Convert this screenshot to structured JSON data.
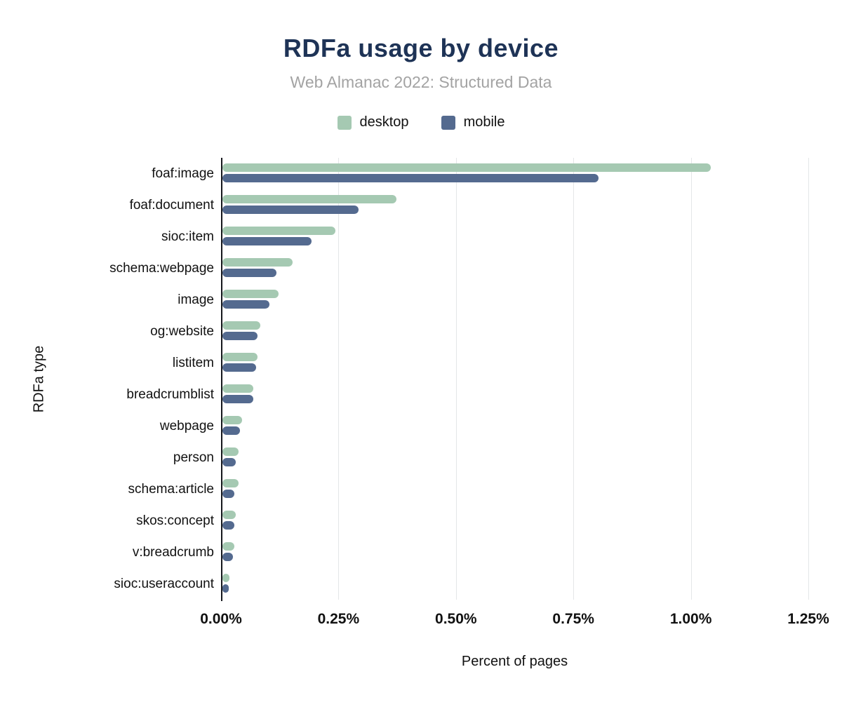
{
  "title": "RDFa usage by device",
  "subtitle": "Web Almanac 2022: Structured Data",
  "colors": {
    "title": "#1e3356",
    "subtitle": "#a3a3a3",
    "desktop": "#a5c9b2",
    "mobile": "#546a8f",
    "grid": "#e4e6e8",
    "axis": "#16181d",
    "text": "#111111"
  },
  "legend": [
    {
      "label": "desktop",
      "color": "#a5c9b2"
    },
    {
      "label": "mobile",
      "color": "#546a8f"
    }
  ],
  "chart_data": {
    "type": "bar",
    "orientation": "horizontal",
    "title": "RDFa usage by device",
    "subtitle": "Web Almanac 2022: Structured Data",
    "xlabel": "Percent of pages",
    "ylabel": "RDFa type",
    "xlim": [
      0,
      1.25
    ],
    "xticks": [
      "0.00%",
      "0.25%",
      "0.50%",
      "0.75%",
      "1.00%",
      "1.25%"
    ],
    "xtick_values": [
      0,
      0.25,
      0.5,
      0.75,
      1.0,
      1.25
    ],
    "grid": true,
    "legend_position": "top",
    "categories": [
      "foaf:image",
      "foaf:document",
      "sioc:item",
      "schema:webpage",
      "image",
      "og:website",
      "listitem",
      "breadcrumblist",
      "webpage",
      "person",
      "schema:article",
      "skos:concept",
      "v:breadcrumb",
      "sioc:useraccount"
    ],
    "series": [
      {
        "name": "desktop",
        "color": "#a5c9b2",
        "values": [
          1.04,
          0.37,
          0.24,
          0.15,
          0.12,
          0.08,
          0.075,
          0.065,
          0.042,
          0.035,
          0.035,
          0.028,
          0.025,
          0.015
        ]
      },
      {
        "name": "mobile",
        "color": "#546a8f",
        "values": [
          0.8,
          0.29,
          0.19,
          0.115,
          0.1,
          0.075,
          0.072,
          0.065,
          0.037,
          0.028,
          0.025,
          0.025,
          0.022,
          0.013
        ]
      }
    ]
  }
}
